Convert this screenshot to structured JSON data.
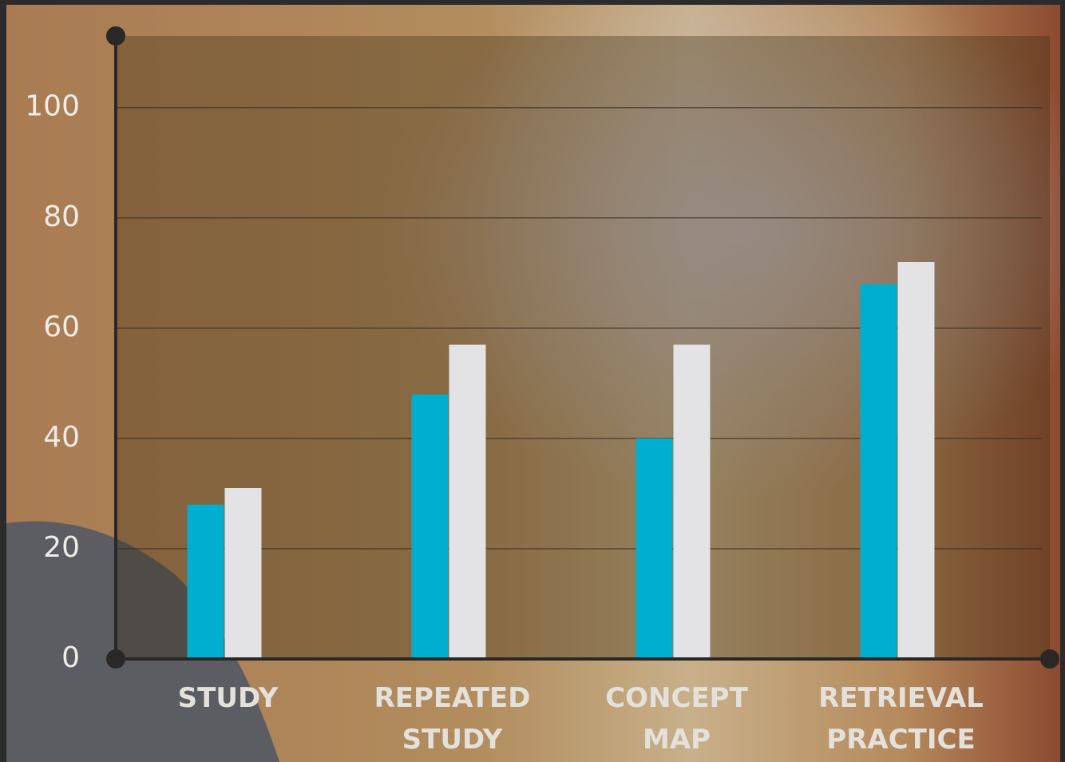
{
  "chart_data": {
    "type": "bar",
    "categories": [
      "STUDY",
      "REPEATED STUDY",
      "CONCEPT MAP",
      "RETRIEVAL PRACTICE"
    ],
    "series": [
      {
        "color": "#00aecf",
        "values": [
          28,
          48,
          40,
          68
        ]
      },
      {
        "color": "#e3e2e5",
        "values": [
          31,
          57,
          57,
          72
        ]
      }
    ],
    "ylim": [
      0,
      113
    ],
    "yticks": [
      0,
      20,
      40,
      60,
      80,
      100
    ],
    "grid": true
  }
}
